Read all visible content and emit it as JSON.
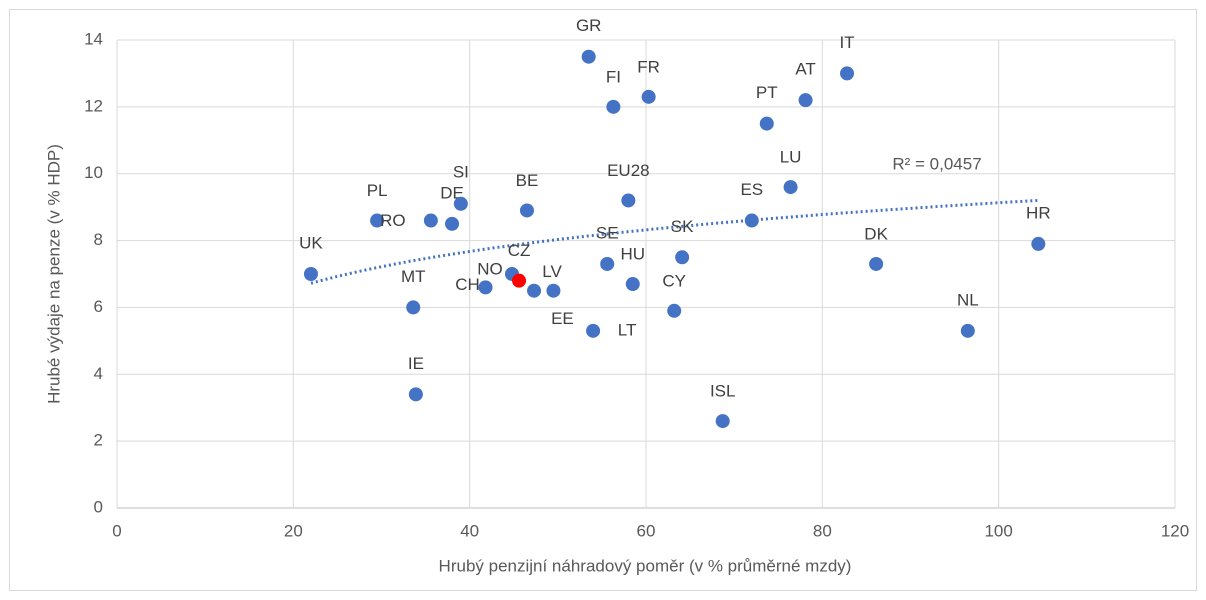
{
  "chart_data": {
    "type": "scatter",
    "x_label": "Hrubý penzijní náhradový poměr (v % průměrné mzdy)",
    "y_label": "Hrubé výdaje na  penze (v % HDP)",
    "xlim": [
      0,
      120
    ],
    "xticks": [
      0,
      20,
      40,
      60,
      80,
      100,
      120
    ],
    "ylim": [
      0,
      14
    ],
    "yticks": [
      0,
      2,
      4,
      6,
      8,
      10,
      12,
      14
    ],
    "grid": true,
    "series": [
      {
        "labels": [
          "UK",
          "PL",
          "RO",
          "DE",
          "SI",
          "BE",
          "MT",
          "IE",
          "CH",
          "NO",
          "CZ",
          "LV",
          "EE",
          "LT",
          "SE",
          "HU",
          "SK",
          "CY",
          "EU28",
          "GR",
          "FI",
          "FR",
          "PT",
          "AT",
          "IT",
          "LU",
          "ES",
          "DK",
          "NL",
          "HR",
          "ISL"
        ],
        "x": [
          22.0,
          29.5,
          35.6,
          38.0,
          39.0,
          46.5,
          33.6,
          33.9,
          41.8,
          44.8,
          45.6,
          47.3,
          49.5,
          54.0,
          55.6,
          58.5,
          64.1,
          63.2,
          58.0,
          53.5,
          56.3,
          60.3,
          73.7,
          78.1,
          82.8,
          76.4,
          72.0,
          86.1,
          96.5,
          104.5,
          68.7
        ],
        "values": [
          7.0,
          8.6,
          8.6,
          8.5,
          9.1,
          8.9,
          6.0,
          3.4,
          6.6,
          7.0,
          6.8,
          6.5,
          6.5,
          5.3,
          7.3,
          6.7,
          7.5,
          5.9,
          9.2,
          13.5,
          12.0,
          12.3,
          11.5,
          12.2,
          13.0,
          9.6,
          8.6,
          7.3,
          5.3,
          7.9,
          2.6
        ],
        "colors": [
          "#4472c4",
          "#4472c4",
          "#4472c4",
          "#4472c4",
          "#4472c4",
          "#4472c4",
          "#4472c4",
          "#4472c4",
          "#4472c4",
          "#4472c4",
          "#ff0000",
          "#4472c4",
          "#4472c4",
          "#4472c4",
          "#4472c4",
          "#4472c4",
          "#4472c4",
          "#4472c4",
          "#4472c4",
          "#4472c4",
          "#4472c4",
          "#4472c4",
          "#4472c4",
          "#4472c4",
          "#4472c4",
          "#4472c4",
          "#4472c4",
          "#4472c4",
          "#4472c4",
          "#4472c4",
          "#4472c4"
        ]
      }
    ],
    "trendline": {
      "type": "logarithmic",
      "a": 1.81,
      "b": 1.59,
      "xrange": [
        22,
        104.5
      ],
      "color": "#4472c4",
      "label": "R² = 0,0457"
    }
  }
}
